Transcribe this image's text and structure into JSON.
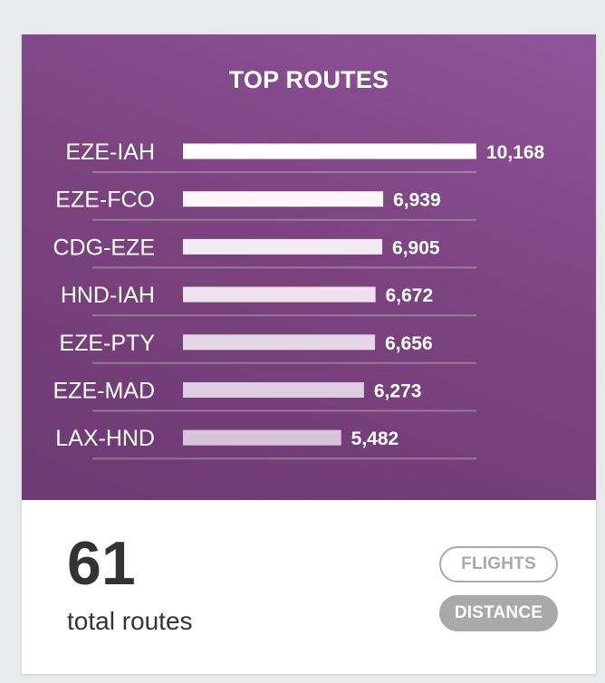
{
  "chart_data": {
    "type": "bar",
    "orientation": "horizontal",
    "title": "TOP ROUTES",
    "categories": [
      "EZE-IAH",
      "EZE-FCO",
      "CDG-EZE",
      "HND-IAH",
      "EZE-PTY",
      "EZE-MAD",
      "LAX-HND"
    ],
    "values": [
      10168,
      6939,
      6905,
      6672,
      6656,
      6273,
      5482
    ],
    "value_labels": [
      "10,168",
      "6,939",
      "6,905",
      "6,672",
      "6,656",
      "6,273",
      "5,482"
    ],
    "xlim": [
      0,
      10168
    ],
    "grid": false,
    "legend": "none"
  },
  "summary": {
    "total_number": "61",
    "total_label": "total routes"
  },
  "toggle": {
    "flights_label": "FLIGHTS",
    "distance_label": "DISTANCE",
    "selected": "distance"
  },
  "colors": {
    "panel_top": "#8f549c",
    "panel_bottom": "#6d3a72",
    "bar_start": "#ffffff",
    "bar_end": "#d9c3db",
    "button_gray": "#a9a9a9",
    "text_dark": "#333333"
  }
}
